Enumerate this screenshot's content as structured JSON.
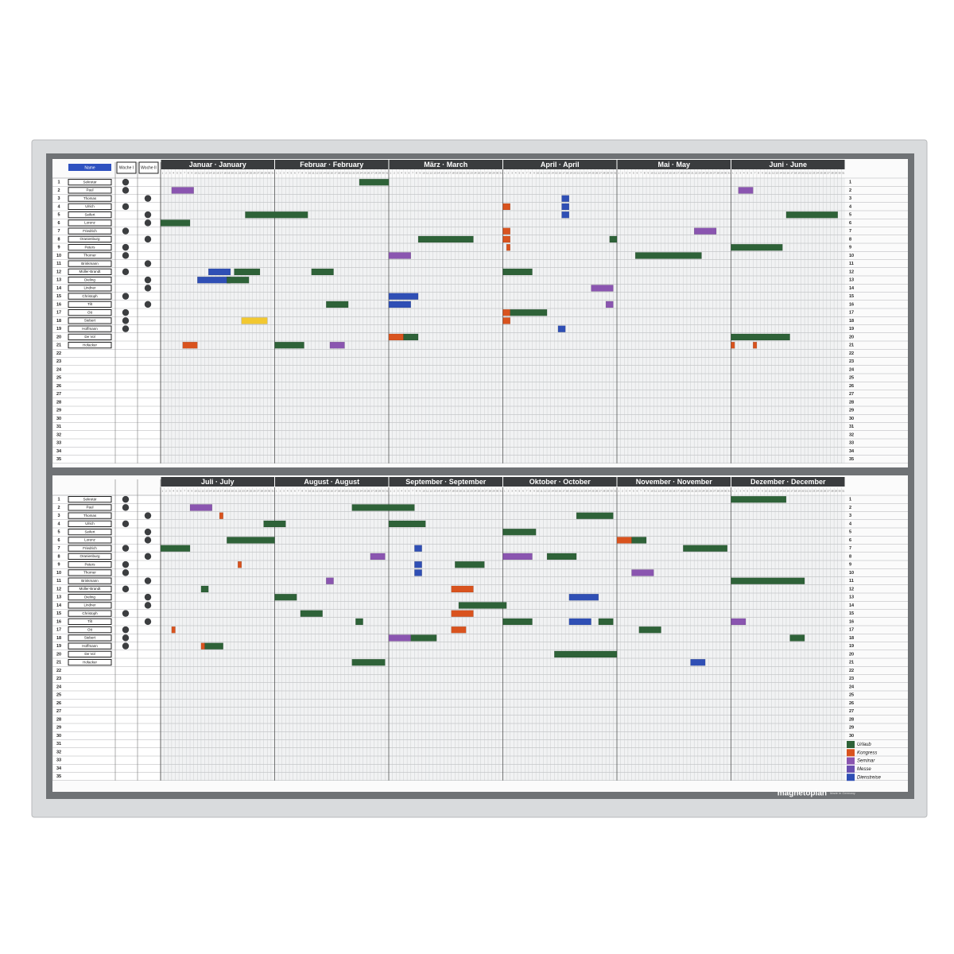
{
  "board": {
    "brand": "magnetoplan",
    "made_in": "Made in Germany",
    "name_header": "Name",
    "week_headers": [
      "Woche I",
      "Woche II"
    ],
    "halves": [
      {
        "months": [
          "Januar · January",
          "Februar · February",
          "März · March",
          "April · April",
          "Mai · May",
          "Juni · June"
        ]
      },
      {
        "months": [
          "Juli · July",
          "August · August",
          "September · September",
          "Oktober · October",
          "November · November",
          "Dezember · December"
        ]
      }
    ],
    "row_numbers": [
      1,
      2,
      3,
      4,
      5,
      6,
      7,
      8,
      9,
      10,
      11,
      12,
      13,
      14,
      15,
      16,
      17,
      18,
      19,
      20,
      21,
      22,
      23,
      24,
      25,
      26,
      27,
      28,
      29,
      30,
      31,
      32,
      33,
      34,
      35
    ],
    "day_numbers": [
      1,
      2,
      3,
      4,
      5,
      6,
      7,
      8,
      9,
      10,
      11,
      12,
      13,
      14,
      15,
      16,
      17,
      18,
      19,
      20,
      21,
      22,
      23,
      24,
      25,
      26,
      27,
      28,
      29,
      30,
      31
    ],
    "names": [
      "Sekretär",
      "Paul",
      "Thomas",
      "Ulrich",
      "Seifert",
      "Lorenz",
      "Friedrich",
      "Oranienburg",
      "Peters",
      "Thorner",
      "Brinkmann",
      "Müller-Brandt",
      "Dieling",
      "Lindner",
      "Christoph",
      "Tilt",
      "Ott",
      "Siebert",
      "Hoffmann",
      "De Vol",
      "Hofacker"
    ],
    "legend": [
      {
        "label": "Urlaub",
        "color": "#2e6238"
      },
      {
        "label": "Kongress",
        "color": "#d9531e"
      },
      {
        "label": "Seminar",
        "color": "#8a55b0"
      },
      {
        "label": "Messe",
        "color": "#6a4fb0"
      },
      {
        "label": "Dienstreise",
        "color": "#2f4fb5"
      }
    ]
  }
}
